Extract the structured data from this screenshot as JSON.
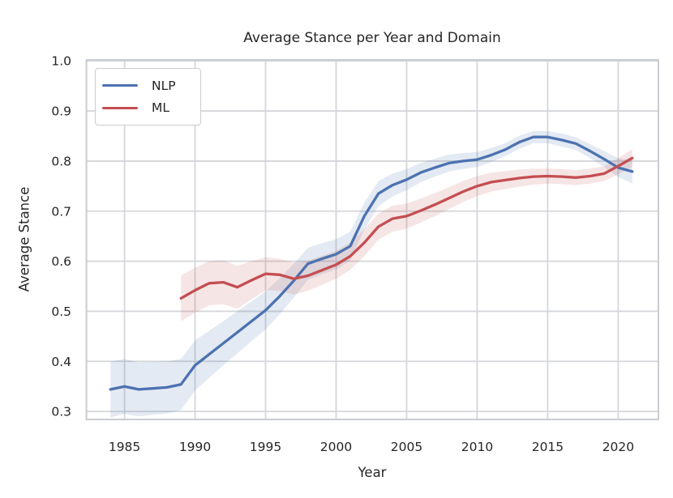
{
  "chart_data": {
    "type": "line",
    "title": "Average Stance per Year and Domain",
    "xlabel": "Year",
    "ylabel": "Average Stance",
    "xlim": [
      1982.3,
      2022.85
    ],
    "ylim": [
      0.284,
      1.002
    ],
    "x_ticks": [
      1985,
      1990,
      1995,
      2000,
      2005,
      2010,
      2015,
      2020
    ],
    "y_ticks": [
      0.3,
      0.4,
      0.5,
      0.6,
      0.7,
      0.8,
      0.9,
      1.0
    ],
    "grid": true,
    "grid_color": "#D4D6DA",
    "spine_color": "#C9CCD0",
    "text_color": "#262626",
    "band_opacity": 0.15,
    "legend_position": "upper left",
    "series": [
      {
        "name": "NLP",
        "color": "#4C72B0",
        "x": [
          1984,
          1985,
          1986,
          1987,
          1988,
          1989,
          1990,
          1991,
          1992,
          1993,
          1994,
          1995,
          1996,
          1997,
          1998,
          1999,
          2000,
          2001,
          2002,
          2003,
          2004,
          2005,
          2006,
          2007,
          2008,
          2009,
          2010,
          2011,
          2012,
          2013,
          2014,
          2015,
          2016,
          2017,
          2018,
          2019,
          2020,
          2021
        ],
        "values": [
          0.344,
          0.35,
          0.344,
          0.346,
          0.348,
          0.354,
          0.392,
          0.414,
          0.436,
          0.458,
          0.48,
          0.502,
          0.53,
          0.561,
          0.595,
          0.605,
          0.614,
          0.63,
          0.69,
          0.735,
          0.752,
          0.763,
          0.777,
          0.787,
          0.796,
          0.8,
          0.803,
          0.812,
          0.823,
          0.838,
          0.848,
          0.848,
          0.842,
          0.835,
          0.82,
          0.804,
          0.787,
          0.779
        ],
        "ci_lower": [
          0.288,
          0.295,
          0.29,
          0.293,
          0.296,
          0.303,
          0.342,
          0.367,
          0.392,
          0.416,
          0.44,
          0.464,
          0.494,
          0.527,
          0.563,
          0.574,
          0.584,
          0.601,
          0.663,
          0.71,
          0.729,
          0.742,
          0.758,
          0.769,
          0.779,
          0.784,
          0.788,
          0.798,
          0.81,
          0.825,
          0.836,
          0.836,
          0.829,
          0.822,
          0.806,
          0.788,
          0.768,
          0.756
        ],
        "ci_upper": [
          0.4,
          0.405,
          0.398,
          0.399,
          0.4,
          0.405,
          0.442,
          0.461,
          0.48,
          0.5,
          0.52,
          0.54,
          0.566,
          0.595,
          0.627,
          0.636,
          0.644,
          0.659,
          0.717,
          0.76,
          0.775,
          0.784,
          0.796,
          0.805,
          0.813,
          0.816,
          0.818,
          0.826,
          0.836,
          0.851,
          0.86,
          0.86,
          0.855,
          0.848,
          0.834,
          0.82,
          0.806,
          0.802
        ]
      },
      {
        "name": "ML",
        "color": "#C44E52",
        "x": [
          1989,
          1990,
          1991,
          1992,
          1993,
          1994,
          1995,
          1996,
          1997,
          1998,
          1999,
          2000,
          2001,
          2002,
          2003,
          2004,
          2005,
          2006,
          2007,
          2008,
          2009,
          2010,
          2011,
          2012,
          2013,
          2014,
          2015,
          2016,
          2017,
          2018,
          2019,
          2020,
          2021
        ],
        "values": [
          0.526,
          0.542,
          0.556,
          0.558,
          0.548,
          0.562,
          0.575,
          0.573,
          0.565,
          0.571,
          0.582,
          0.593,
          0.61,
          0.637,
          0.669,
          0.685,
          0.69,
          0.701,
          0.713,
          0.726,
          0.739,
          0.75,
          0.758,
          0.762,
          0.766,
          0.769,
          0.77,
          0.769,
          0.767,
          0.77,
          0.775,
          0.79,
          0.806
        ],
        "ci_lower": [
          0.48,
          0.497,
          0.512,
          0.514,
          0.505,
          0.524,
          0.542,
          0.541,
          0.533,
          0.541,
          0.553,
          0.565,
          0.583,
          0.61,
          0.643,
          0.659,
          0.665,
          0.677,
          0.69,
          0.704,
          0.718,
          0.73,
          0.739,
          0.744,
          0.749,
          0.753,
          0.755,
          0.754,
          0.752,
          0.755,
          0.76,
          0.774,
          0.788
        ],
        "ci_upper": [
          0.572,
          0.587,
          0.6,
          0.602,
          0.591,
          0.6,
          0.608,
          0.605,
          0.597,
          0.601,
          0.611,
          0.621,
          0.637,
          0.664,
          0.695,
          0.711,
          0.715,
          0.725,
          0.736,
          0.748,
          0.76,
          0.77,
          0.777,
          0.78,
          0.783,
          0.785,
          0.785,
          0.784,
          0.782,
          0.785,
          0.79,
          0.806,
          0.824
        ]
      }
    ]
  }
}
